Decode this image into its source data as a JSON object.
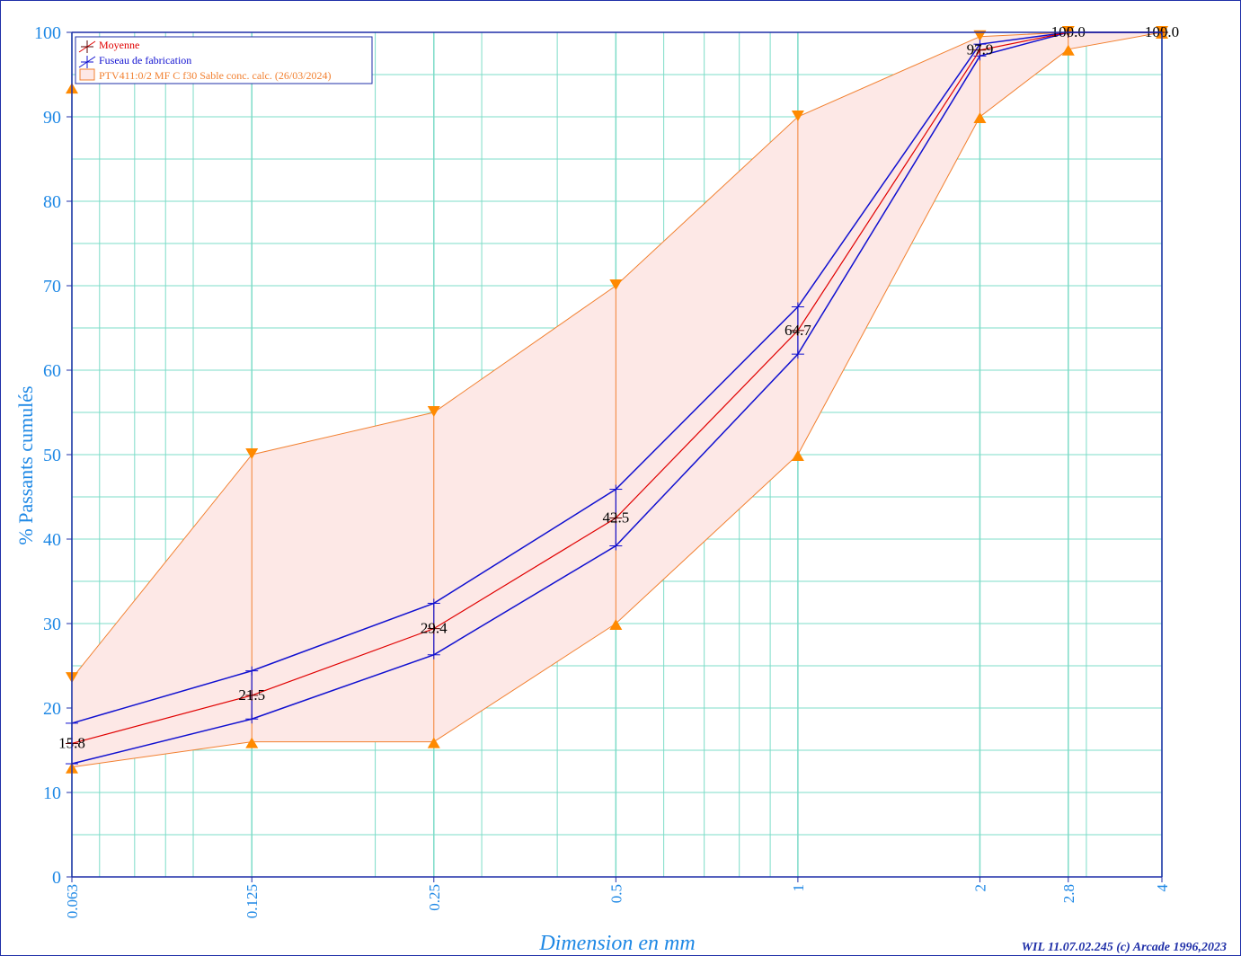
{
  "chart_data": {
    "type": "line",
    "ylabel": "% Passants cumulés",
    "xlabel": "Dimension en mm",
    "credit": "WIL 11.07.02.245 (c) Arcade 1996,2023",
    "x_scale": "log",
    "x": [
      0.063,
      0.125,
      0.25,
      0.5,
      1,
      2,
      2.8,
      4
    ],
    "x_tick_labels": [
      "0.063",
      "0.125",
      "0.25",
      "0.5",
      "1",
      "2",
      "2.8",
      "4"
    ],
    "ylim": [
      0,
      100
    ],
    "y_ticks": [
      0,
      10,
      20,
      30,
      40,
      50,
      60,
      70,
      80,
      90,
      100
    ],
    "grid": true,
    "legend_position": "top-left",
    "series": [
      {
        "name": "Moyenne",
        "color": "#e00000",
        "values": [
          15.8,
          21.5,
          29.4,
          42.5,
          64.7,
          97.9,
          100.0,
          100.0
        ],
        "labels": [
          "15.8",
          "21.5",
          "29.4",
          "42.5",
          "64.7",
          "97.9",
          "100.0",
          "100.0"
        ]
      },
      {
        "name": "Fuseau de fabrication",
        "color": "#1010d0",
        "upper": [
          18.2,
          24.4,
          32.4,
          45.9,
          67.5,
          98.6,
          100.0,
          100.0
        ],
        "lower": [
          13.4,
          18.7,
          26.3,
          39.2,
          61.9,
          97.2,
          100.0,
          100.0
        ]
      },
      {
        "name": "PTV411:0/2 MF C f30 Sable conc. calc. (26/03/2024)",
        "color": "#f28030",
        "fill": "#fde8e6",
        "upper": [
          23.5,
          50.0,
          55.0,
          70.0,
          90.0,
          99.5,
          100.0,
          100.0
        ],
        "lower": [
          13.0,
          16.0,
          16.0,
          30.0,
          50.0,
          90.0,
          98.0,
          100.0
        ],
        "first_point_marker": 93.5
      }
    ]
  }
}
